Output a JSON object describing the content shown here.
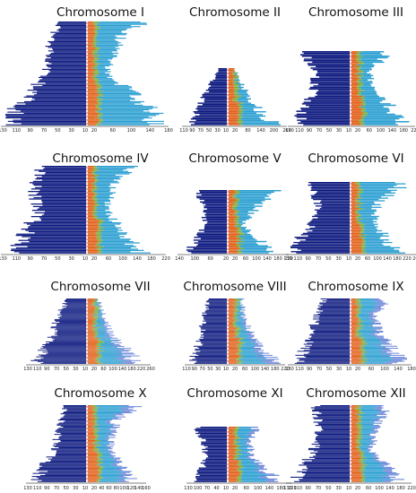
{
  "colors": {
    "left_bars": "#0d1a7f",
    "right_base": "#e2611b",
    "right_mid": "#7fad3b",
    "right_outer": "#2da0d2",
    "right_far": "#6a85d8",
    "axis_line": "#f0f0f0",
    "axis_dots": "#e8384f"
  },
  "chart_data": [
    {
      "type": "bar",
      "title": "Chromosome I",
      "left_ticks": [
        "130",
        "110",
        "90",
        "70",
        "50",
        "30",
        "10"
      ],
      "right_ticks": [
        "20",
        "60",
        "100",
        "140",
        "180"
      ],
      "left_max": 130,
      "right_max": 190,
      "row_count": 90,
      "left_profile": [
        [
          0,
          45
        ],
        [
          0.2,
          60
        ],
        [
          0.5,
          70
        ],
        [
          0.7,
          92
        ],
        [
          0.85,
          118
        ],
        [
          1,
          130
        ]
      ],
      "right_profile": [
        [
          0,
          150
        ],
        [
          0.1,
          90
        ],
        [
          0.5,
          50
        ],
        [
          0.7,
          120
        ],
        [
          0.85,
          160
        ],
        [
          1,
          180
        ]
      ],
      "far_fraction": 0
    },
    {
      "type": "bar",
      "title": "Chromosome II",
      "left_ticks": [
        "110",
        "90",
        "70",
        "50",
        "30",
        "10"
      ],
      "right_ticks": [
        "20",
        "80",
        "140",
        "200",
        "260"
      ],
      "left_max": 115,
      "right_max": 265,
      "row_count": 40,
      "left_profile": [
        [
          0,
          25
        ],
        [
          0.35,
          55
        ],
        [
          0.7,
          85
        ],
        [
          1,
          115
        ]
      ],
      "right_profile": [
        [
          0,
          30
        ],
        [
          0.4,
          90
        ],
        [
          0.7,
          150
        ],
        [
          1,
          240
        ]
      ],
      "far_fraction": 0
    },
    {
      "type": "bar",
      "title": "Chromosome III",
      "left_ticks": [
        "130",
        "110",
        "90",
        "70",
        "50",
        "30",
        "10"
      ],
      "right_ticks": [
        "20",
        "60",
        "100",
        "140",
        "180",
        "220"
      ],
      "left_max": 130,
      "right_max": 225,
      "row_count": 50,
      "left_profile": [
        [
          0,
          110
        ],
        [
          0.3,
          80
        ],
        [
          0.55,
          85
        ],
        [
          0.8,
          110
        ],
        [
          1,
          130
        ]
      ],
      "right_profile": [
        [
          0,
          150
        ],
        [
          0.3,
          70
        ],
        [
          0.55,
          90
        ],
        [
          0.8,
          170
        ],
        [
          1,
          210
        ]
      ],
      "far_fraction": 0
    },
    {
      "type": "bar",
      "title": "Chromosome IV",
      "left_ticks": [
        "130",
        "110",
        "90",
        "70",
        "50",
        "30",
        "10"
      ],
      "right_ticks": [
        "20",
        "60",
        "100",
        "140",
        "180",
        "220"
      ],
      "left_max": 130,
      "right_max": 225,
      "row_count": 70,
      "left_profile": [
        [
          0,
          75
        ],
        [
          0.2,
          90
        ],
        [
          0.5,
          80
        ],
        [
          0.75,
          100
        ],
        [
          1,
          125
        ]
      ],
      "right_profile": [
        [
          0,
          150
        ],
        [
          0.15,
          90
        ],
        [
          0.5,
          60
        ],
        [
          0.75,
          110
        ],
        [
          1,
          170
        ]
      ],
      "far_fraction": 0
    },
    {
      "type": "bar",
      "title": "Chromosome V",
      "left_ticks": [
        "140",
        "100",
        "60",
        "20"
      ],
      "right_ticks": [
        "20",
        "60",
        "100",
        "140",
        "180",
        "220"
      ],
      "left_max": 140,
      "right_max": 225,
      "row_count": 45,
      "left_profile": [
        [
          0,
          95
        ],
        [
          0.3,
          75
        ],
        [
          0.55,
          70
        ],
        [
          0.8,
          100
        ],
        [
          1,
          130
        ]
      ],
      "right_profile": [
        [
          0,
          200
        ],
        [
          0.3,
          110
        ],
        [
          0.55,
          60
        ],
        [
          0.8,
          130
        ],
        [
          1,
          190
        ]
      ],
      "far_fraction": 0
    },
    {
      "type": "bar",
      "title": "Chromosome VI",
      "left_ticks": [
        "130",
        "110",
        "90",
        "70",
        "50",
        "30",
        "10"
      ],
      "right_ticks": [
        "20",
        "60",
        "100",
        "140",
        "180",
        "220",
        "260"
      ],
      "left_max": 130,
      "right_max": 265,
      "row_count": 55,
      "left_profile": [
        [
          0,
          90
        ],
        [
          0.3,
          75
        ],
        [
          0.55,
          80
        ],
        [
          0.8,
          115
        ],
        [
          1,
          130
        ]
      ],
      "right_profile": [
        [
          0,
          240
        ],
        [
          0.3,
          120
        ],
        [
          0.55,
          100
        ],
        [
          0.8,
          160
        ],
        [
          1,
          210
        ]
      ],
      "far_fraction": 0
    },
    {
      "type": "bar",
      "title": "Chromosome VII",
      "left_ticks": [
        "130",
        "110",
        "90",
        "70",
        "50",
        "30",
        "10"
      ],
      "right_ticks": [
        "20",
        "60",
        "100",
        "140",
        "180",
        "220",
        "260"
      ],
      "left_max": 130,
      "right_max": 265,
      "row_count": 70,
      "left_profile": [
        [
          0,
          45
        ],
        [
          0.3,
          70
        ],
        [
          0.6,
          85
        ],
        [
          0.85,
          110
        ],
        [
          1,
          125
        ]
      ],
      "right_profile": [
        [
          0,
          50
        ],
        [
          0.3,
          80
        ],
        [
          0.6,
          120
        ],
        [
          0.85,
          200
        ],
        [
          1,
          230
        ]
      ],
      "far_fraction": 0.35
    },
    {
      "type": "bar",
      "title": "Chromosome VIII",
      "left_ticks": [
        "110",
        "90",
        "70",
        "50",
        "30",
        "10"
      ],
      "right_ticks": [
        "20",
        "60",
        "100",
        "140",
        "180",
        "220"
      ],
      "left_max": 115,
      "right_max": 225,
      "row_count": 65,
      "left_profile": [
        [
          0,
          55
        ],
        [
          0.3,
          75
        ],
        [
          0.6,
          85
        ],
        [
          0.85,
          100
        ],
        [
          1,
          115
        ]
      ],
      "right_profile": [
        [
          0,
          60
        ],
        [
          0.3,
          70
        ],
        [
          0.6,
          110
        ],
        [
          0.85,
          170
        ],
        [
          1,
          210
        ]
      ],
      "far_fraction": 0.35
    },
    {
      "type": "bar",
      "title": "Chromosome IX",
      "left_ticks": [
        "130",
        "110",
        "90",
        "70",
        "50",
        "30",
        "10"
      ],
      "right_ticks": [
        "20",
        "60",
        "100",
        "140",
        "180"
      ],
      "left_max": 130,
      "right_max": 190,
      "row_count": 65,
      "left_profile": [
        [
          0,
          60
        ],
        [
          0.3,
          80
        ],
        [
          0.6,
          95
        ],
        [
          0.85,
          115
        ],
        [
          1,
          125
        ]
      ],
      "right_profile": [
        [
          0,
          120
        ],
        [
          0.3,
          85
        ],
        [
          0.6,
          110
        ],
        [
          0.85,
          160
        ],
        [
          1,
          180
        ]
      ],
      "far_fraction": 0.35
    },
    {
      "type": "bar",
      "title": "Chromosome X",
      "left_ticks": [
        "130",
        "110",
        "90",
        "70",
        "50",
        "30",
        "10"
      ],
      "right_ticks": [
        "20",
        "40",
        "60",
        "80",
        "100",
        "120",
        "140",
        "160"
      ],
      "left_max": 130,
      "right_max": 165,
      "row_count": 75,
      "left_profile": [
        [
          0,
          50
        ],
        [
          0.3,
          65
        ],
        [
          0.6,
          80
        ],
        [
          0.85,
          110
        ],
        [
          1,
          125
        ]
      ],
      "right_profile": [
        [
          0,
          155
        ],
        [
          0.2,
          90
        ],
        [
          0.6,
          70
        ],
        [
          0.85,
          120
        ],
        [
          1,
          150
        ]
      ],
      "far_fraction": 0.3
    },
    {
      "type": "bar",
      "title": "Chromosome XI",
      "left_ticks": [
        "130",
        "100",
        "70",
        "40",
        "10"
      ],
      "right_ticks": [
        "20",
        "60",
        "100",
        "140",
        "180",
        "220"
      ],
      "left_max": 135,
      "right_max": 225,
      "row_count": 45,
      "left_profile": [
        [
          0,
          120
        ],
        [
          0.3,
          90
        ],
        [
          0.6,
          85
        ],
        [
          0.85,
          110
        ],
        [
          1,
          130
        ]
      ],
      "right_profile": [
        [
          0,
          110
        ],
        [
          0.3,
          80
        ],
        [
          0.6,
          100
        ],
        [
          0.85,
          160
        ],
        [
          1,
          200
        ]
      ],
      "far_fraction": 0.3
    },
    {
      "type": "bar",
      "title": "Chromosome XII",
      "left_ticks": [
        "130",
        "110",
        "90",
        "70",
        "50",
        "30",
        "10"
      ],
      "right_ticks": [
        "20",
        "60",
        "100",
        "140",
        "180",
        "220"
      ],
      "left_max": 130,
      "right_max": 225,
      "row_count": 70,
      "left_profile": [
        [
          0,
          80
        ],
        [
          0.3,
          70
        ],
        [
          0.6,
          85
        ],
        [
          0.85,
          110
        ],
        [
          1,
          125
        ]
      ],
      "right_profile": [
        [
          0,
          150
        ],
        [
          0.3,
          100
        ],
        [
          0.6,
          90
        ],
        [
          0.85,
          160
        ],
        [
          1,
          210
        ]
      ],
      "far_fraction": 0.3
    }
  ]
}
